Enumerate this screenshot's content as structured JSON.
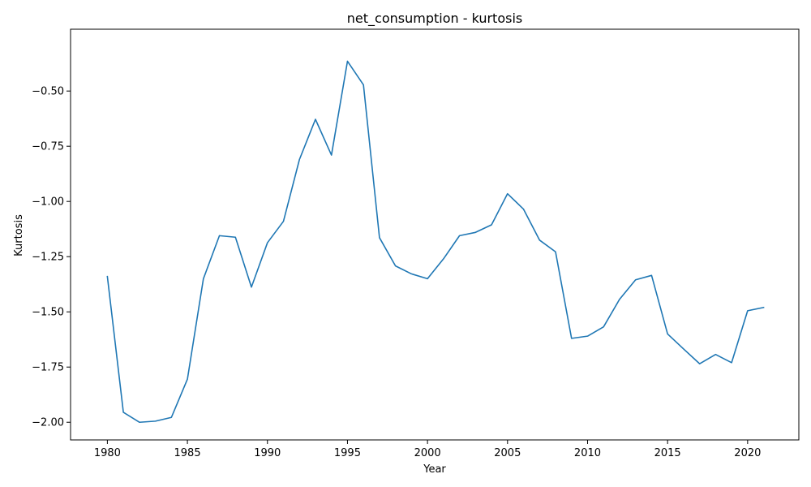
{
  "chart_data": {
    "type": "line",
    "title": "net_consumption - kurtosis",
    "xlabel": "Year",
    "ylabel": "Kurtosis",
    "xlim": [
      1977.7,
      2023.2
    ],
    "ylim": [
      -2.08,
      -0.22
    ],
    "grid": false,
    "legend": "none",
    "x_ticks": [
      1980,
      1985,
      1990,
      1995,
      2000,
      2005,
      2010,
      2015,
      2020
    ],
    "x_tick_labels": [
      "1980",
      "1985",
      "1990",
      "1995",
      "2000",
      "2005",
      "2010",
      "2015",
      "2020"
    ],
    "y_ticks": [
      -2.0,
      -1.75,
      -1.5,
      -1.25,
      -1.0,
      -0.75,
      -0.5
    ],
    "y_tick_labels": [
      "−2.00",
      "−1.75",
      "−1.50",
      "−1.25",
      "−1.00",
      "−0.75",
      "−0.50"
    ],
    "series": [
      {
        "color": "#1f77b4",
        "x": [
          1980,
          1981,
          1982,
          1983,
          1984,
          1985,
          1986,
          1987,
          1988,
          1989,
          1990,
          1991,
          1992,
          1993,
          1994,
          1995,
          1996,
          1997,
          1998,
          1999,
          2000,
          2001,
          2002,
          2003,
          2004,
          2005,
          2006,
          2007,
          2008,
          2009,
          2010,
          2011,
          2012,
          2013,
          2014,
          2015,
          2016,
          2017,
          2018,
          2019,
          2020,
          2021
        ],
        "values": [
          -1.34,
          -1.955,
          -2.0,
          -1.995,
          -1.978,
          -1.805,
          -1.35,
          -1.155,
          -1.162,
          -1.388,
          -1.187,
          -1.09,
          -0.81,
          -0.628,
          -0.79,
          -0.365,
          -0.472,
          -1.164,
          -1.292,
          -1.328,
          -1.35,
          -1.26,
          -1.155,
          -1.14,
          -1.106,
          -0.965,
          -1.035,
          -1.175,
          -1.228,
          -1.62,
          -1.61,
          -1.568,
          -1.443,
          -1.355,
          -1.335,
          -1.6,
          -1.668,
          -1.735,
          -1.693,
          -1.73,
          -1.495,
          -1.48
        ]
      }
    ]
  }
}
